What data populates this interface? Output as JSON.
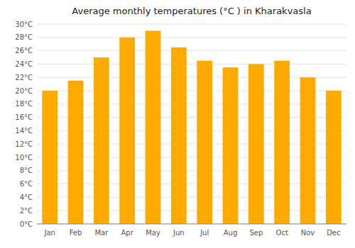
{
  "chart_data": {
    "type": "bar",
    "title": "Average monthly temperatures (°C ) in Kharakvasla",
    "categories": [
      "Jan",
      "Feb",
      "Mar",
      "Apr",
      "May",
      "Jun",
      "Jul",
      "Aug",
      "Sep",
      "Oct",
      "Nov",
      "Dec"
    ],
    "values": [
      20.0,
      21.5,
      25.0,
      28.0,
      29.0,
      26.5,
      24.5,
      23.5,
      24.0,
      24.5,
      22.0,
      20.0
    ],
    "color": "#FFAA00",
    "ylim": [
      0,
      30
    ],
    "yticks": [
      {
        "value": 0,
        "label": "0°C"
      },
      {
        "value": 2,
        "label": "2°C"
      },
      {
        "value": 4,
        "label": "4°C"
      },
      {
        "value": 6,
        "label": "6°C"
      },
      {
        "value": 8,
        "label": "8°C"
      },
      {
        "value": 10,
        "label": "10°C"
      },
      {
        "value": 12,
        "label": "12°C"
      },
      {
        "value": 14,
        "label": "14°C"
      },
      {
        "value": 16,
        "label": "16°C"
      },
      {
        "value": 18,
        "label": "18°C"
      },
      {
        "value": 20,
        "label": "20°C"
      },
      {
        "value": 22,
        "label": "22°C"
      },
      {
        "value": 24,
        "label": "24°C"
      },
      {
        "value": 26,
        "label": "26°C"
      },
      {
        "value": 28,
        "label": "28°C"
      },
      {
        "value": 30,
        "label": "30°C"
      }
    ],
    "grid": true
  }
}
